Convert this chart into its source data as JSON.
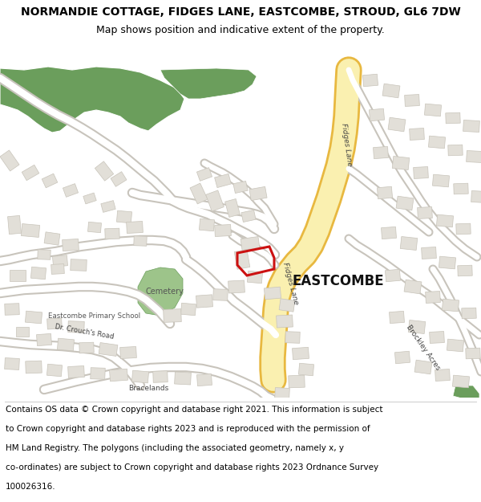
{
  "title_line1": "NORMANDIE COTTAGE, FIDGES LANE, EASTCOMBE, STROUD, GL6 7DW",
  "title_line2": "Map shows position and indicative extent of the property.",
  "footer_lines": [
    "Contains OS data © Crown copyright and database right 2021. This information is subject",
    "to Crown copyright and database rights 2023 and is reproduced with the permission of",
    "HM Land Registry. The polygons (including the associated geometry, namely x, y",
    "co-ordinates) are subject to Crown copyright and database rights 2023 Ordnance Survey",
    "100026316."
  ],
  "bg_color": "#ffffff",
  "map_bg": "#f7f6f2",
  "road_yellow_fill": "#faf0b0",
  "road_yellow_border": "#e8b840",
  "road_white_fill": "#ffffff",
  "road_white_border": "#c8c4bc",
  "building_fill": "#e2dfd8",
  "building_edge": "#c8c4ba",
  "green_dark": "#6b9e5c",
  "green_light": "#9dc48a",
  "red_outline": "#cc1111",
  "title_fs": 10,
  "sub_fs": 9,
  "footer_fs": 7.5,
  "label_fs": 6.5
}
